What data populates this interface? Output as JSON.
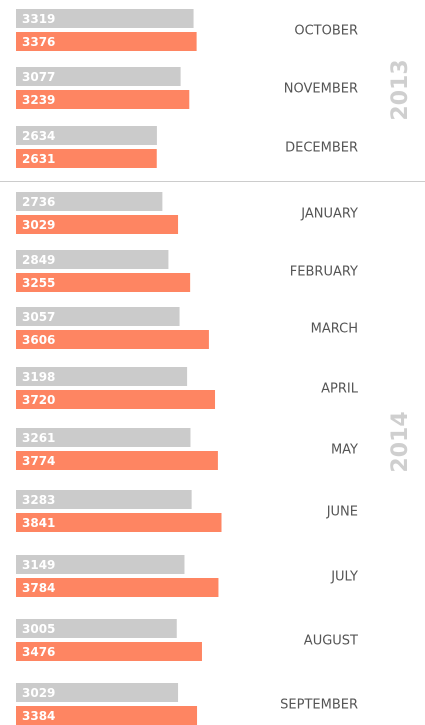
{
  "chart_data": {
    "type": "bar",
    "orientation": "horizontal",
    "groups": [
      {
        "label": "2013",
        "categories": [
          "OCTOBER",
          "NOVEMBER",
          "DECEMBER"
        ],
        "series": [
          {
            "color": "#cbcbcb",
            "values": [
              3319,
              3077,
              2634
            ]
          },
          {
            "color": "#fe8562",
            "values": [
              3376,
              3239,
              2631
            ]
          }
        ]
      },
      {
        "label": "2014",
        "categories": [
          "JANUARY",
          "FEBRUARY",
          "MARCH",
          "APRIL",
          "MAY",
          "JUNE",
          "JULY",
          "AUGUST",
          "SEPTEMBER"
        ],
        "series": [
          {
            "color": "#cbcbcb",
            "values": [
              2736,
              2849,
              3057,
              3198,
              3261,
              3283,
              3149,
              3005,
              3029
            ]
          },
          {
            "color": "#fe8562",
            "values": [
              3029,
              3255,
              3606,
              3720,
              3774,
              3841,
              3784,
              3476,
              3384
            ]
          }
        ]
      }
    ]
  }
}
